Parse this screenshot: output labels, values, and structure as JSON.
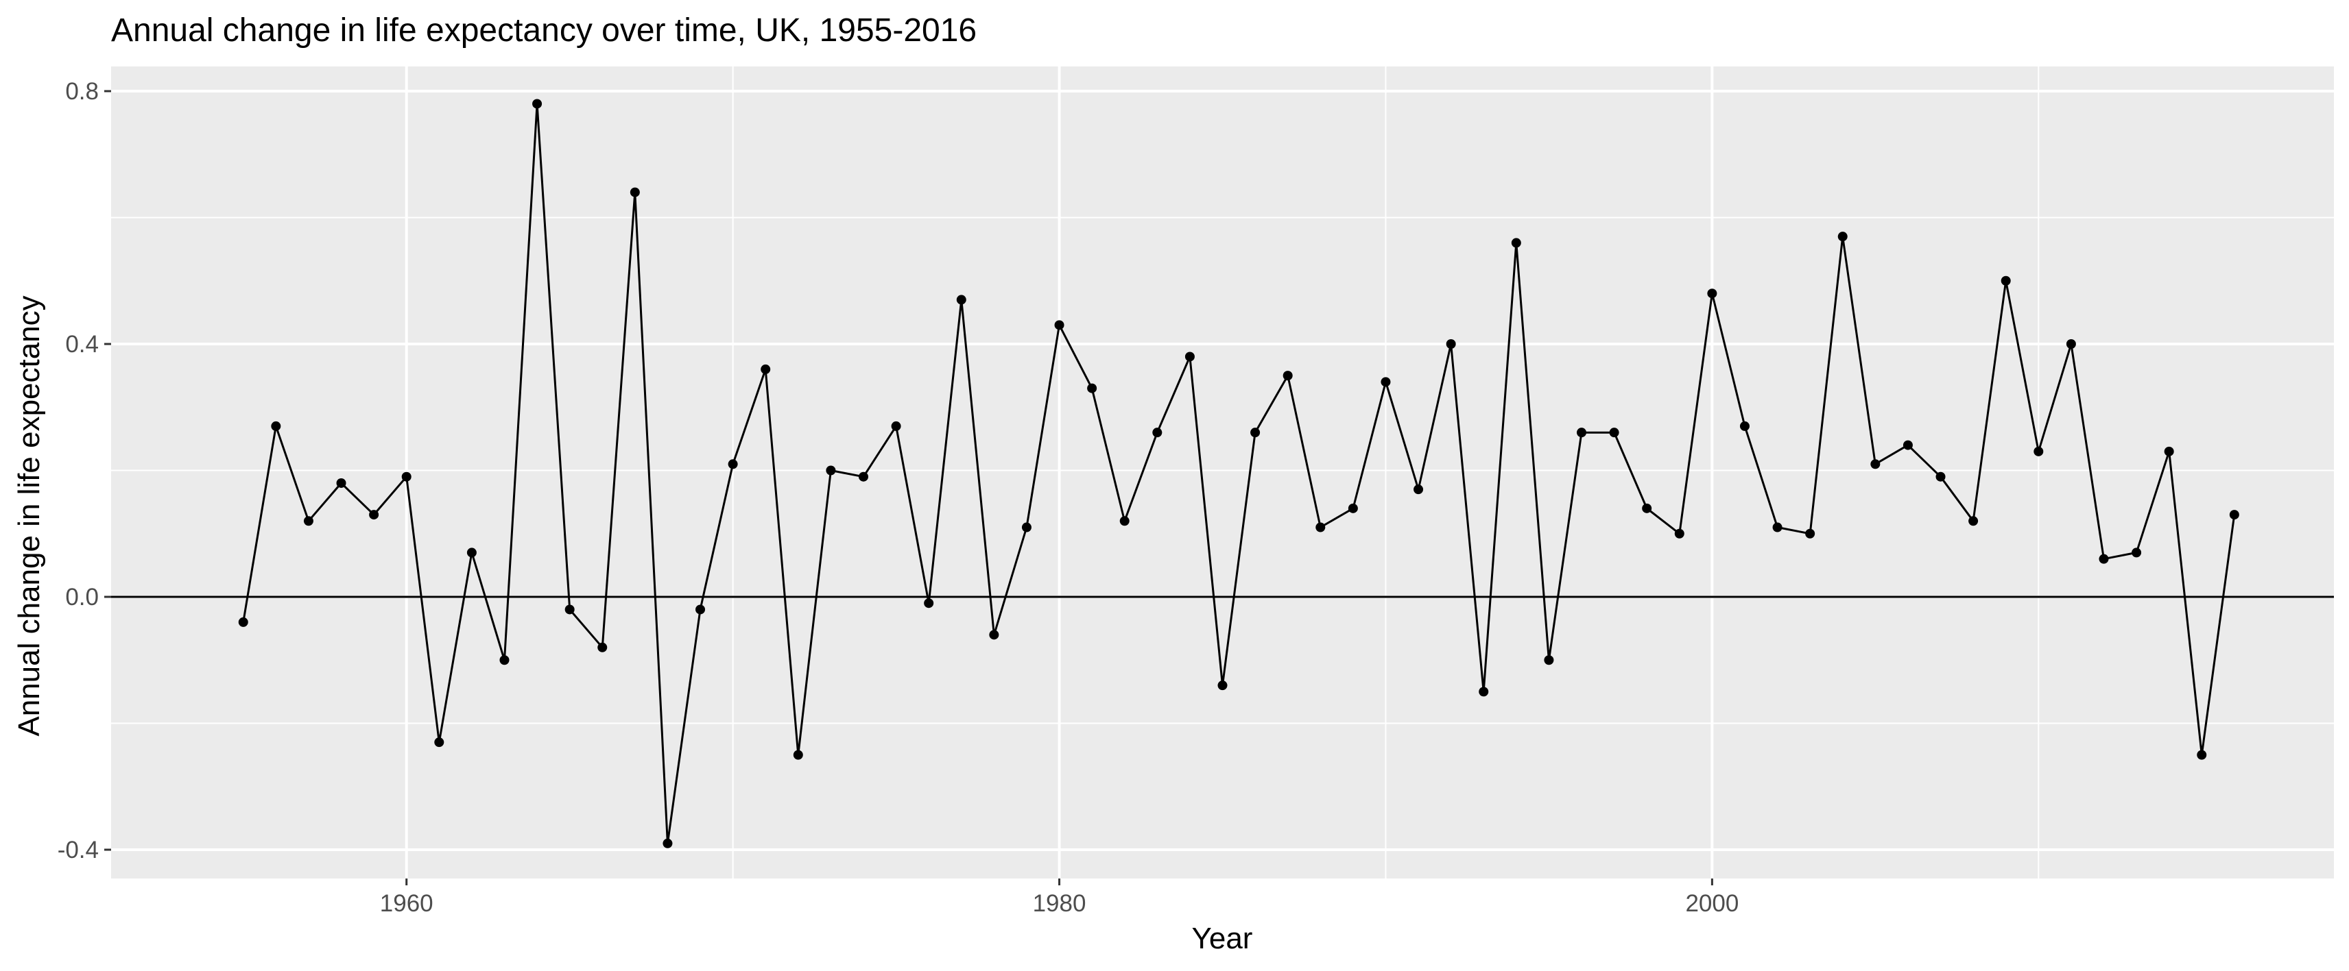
{
  "chart_data": {
    "type": "line",
    "title": "Annual change in life expectancy over time, UK, 1955-2016",
    "xlabel": "Year",
    "ylabel": "Annual change in life expectancy",
    "xlim": [
      1950.95,
      2019.05
    ],
    "ylim": [
      -0.4,
      0.8
    ],
    "x_ticks": [
      1960,
      1980,
      2000
    ],
    "x_tick_labels": [
      "1960",
      "1980",
      "2000"
    ],
    "y_ticks": [
      -0.4,
      0,
      0.4,
      0.8
    ],
    "y_tick_labels": [
      "-0.4",
      "0.0",
      "0.4",
      "0.8"
    ],
    "reference_line_y": 0,
    "grid": true,
    "colors": {
      "panel_background": "#ebebeb",
      "grid": "#ffffff",
      "line": "#000000",
      "points": "#000000",
      "tick_text": "#4d4d4d",
      "tick_marks": "#333333"
    },
    "series": [
      {
        "x": [
          1955,
          1956,
          1957,
          1958,
          1959,
          1960,
          1961,
          1962,
          1963,
          1964,
          1965,
          1966,
          1967,
          1968,
          1969,
          1970,
          1971,
          1972,
          1973,
          1974,
          1975,
          1976,
          1977,
          1978,
          1979,
          1980,
          1981,
          1982,
          1983,
          1984,
          1985,
          1986,
          1987,
          1988,
          1989,
          1990,
          1991,
          1992,
          1993,
          1994,
          1995,
          1996,
          1997,
          1998,
          1999,
          2000,
          2001,
          2002,
          2003,
          2004,
          2005,
          2006,
          2007,
          2008,
          2009,
          2010,
          2011,
          2012,
          2013,
          2014,
          2015,
          2016
        ],
        "y": [
          -0.04,
          0.27,
          0.12,
          0.18,
          0.13,
          0.19,
          -0.23,
          0.07,
          -0.1,
          0.78,
          -0.02,
          -0.08,
          0.64,
          -0.39,
          -0.02,
          0.21,
          0.36,
          -0.25,
          0.2,
          0.19,
          0.27,
          -0.01,
          0.47,
          -0.06,
          0.11,
          0.43,
          0.33,
          0.12,
          0.26,
          0.38,
          -0.14,
          0.26,
          0.35,
          0.11,
          0.14,
          0.34,
          0.17,
          0.4,
          -0.15,
          0.56,
          -0.1,
          0.26,
          0.26,
          0.14,
          0.1,
          0.48,
          0.27,
          0.11,
          0.1,
          0.57,
          0.21,
          0.24,
          0.19,
          0.12,
          0.5,
          0.23,
          0.4,
          0.06,
          0.07,
          0.23,
          -0.25,
          0.13
        ]
      }
    ]
  }
}
